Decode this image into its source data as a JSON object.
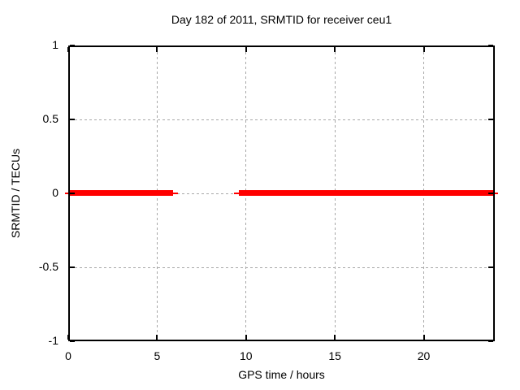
{
  "window": {
    "background_color": "#ffffff"
  },
  "chart_data": {
    "type": "line",
    "title": "Day 182 of 2011, SRMTID for receiver ceu1",
    "xlabel": "GPS time / hours",
    "ylabel": "SRMTID / TECUs",
    "xlim": [
      0,
      24
    ],
    "ylim": [
      -1,
      1
    ],
    "grid": true,
    "legend": "none",
    "x_ticks": [
      {
        "value": 0,
        "label": "0"
      },
      {
        "value": 5,
        "label": "5"
      },
      {
        "value": 10,
        "label": "10"
      },
      {
        "value": 15,
        "label": "15"
      },
      {
        "value": 20,
        "label": "20"
      }
    ],
    "y_ticks": [
      {
        "value": 1,
        "label": "1"
      },
      {
        "value": 0.5,
        "label": "0.5"
      },
      {
        "value": 0,
        "label": "0"
      },
      {
        "value": -0.5,
        "label": "-0.5"
      },
      {
        "value": -1,
        "label": "-1"
      }
    ],
    "series": [
      {
        "name": "SRMTID",
        "color": "#ff0000",
        "segments": [
          {
            "x_start": 0,
            "x_end": 6.0,
            "y": 0
          },
          {
            "x_start": 9.5,
            "x_end": 24,
            "y": 0
          }
        ]
      }
    ],
    "colors": {
      "line": "#ff0000",
      "grid": "#a8a8a8",
      "border": "#000000",
      "text": "#000000"
    }
  }
}
